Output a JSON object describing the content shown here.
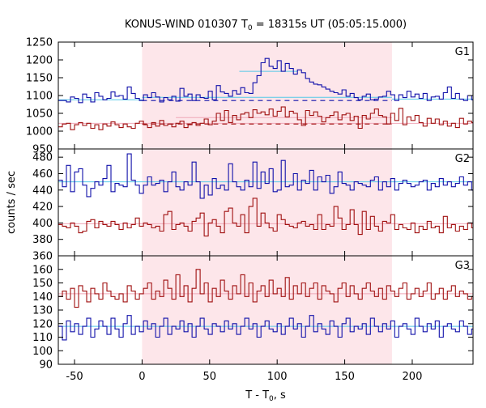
{
  "chart_data": {
    "type": "line",
    "title_main": "KONUS-WIND 010307 T",
    "title_sub": "0",
    "title_rest": " = 18315s UT (05:05:15.000)",
    "xlabel_main": "T - T",
    "xlabel_sub": "0",
    "xlabel_rest": ", s",
    "ylabel": "counts / sec",
    "xlim": [
      -62,
      245
    ],
    "xticks": [
      -50,
      0,
      50,
      100,
      150,
      200
    ],
    "xtick_labels": [
      "-50",
      "0",
      "50",
      "100",
      "150",
      "200"
    ],
    "shaded_interval": [
      0,
      185
    ],
    "colors": {
      "blue": "#1010aa",
      "red": "#a01010",
      "cyan": "#55c8e8",
      "pink": "#f0a8b8",
      "shade": "#fde6ea",
      "dash": "#1010aa",
      "dash_red": "#a01010"
    },
    "panels": [
      {
        "label": "G1",
        "ylim": [
          950,
          1250
        ],
        "yticks": [
          950,
          1000,
          1050,
          1100,
          1150,
          1200,
          1250
        ],
        "ytick_labels": [
          "950",
          "1000",
          "1050",
          "1100",
          "1150",
          "1200",
          "1250"
        ],
        "series": [
          {
            "color_key": "blue",
            "bin_width": 3,
            "x_start": -62,
            "values": [
              1086,
              1086,
              1082,
              1096,
              1092,
              1080,
              1104,
              1094,
              1082,
              1108,
              1098,
              1088,
              1092,
              1110,
              1098,
              1100,
              1090,
              1124,
              1106,
              1092,
              1086,
              1102,
              1094,
              1108,
              1096,
              1082,
              1094,
              1088,
              1098,
              1084,
              1120,
              1098,
              1104,
              1086,
              1102,
              1094,
              1092,
              1112,
              1088,
              1128,
              1110,
              1106,
              1098,
              1114,
              1104,
              1122,
              1108,
              1106,
              1136,
              1156,
              1192,
              1204,
              1182,
              1176,
              1198,
              1168,
              1190,
              1176,
              1160,
              1172,
              1164,
              1148,
              1138,
              1132,
              1130,
              1124,
              1118,
              1112,
              1108,
              1104,
              1116,
              1098,
              1106,
              1094,
              1088,
              1098,
              1104,
              1088,
              1090,
              1096,
              1098,
              1112,
              1102,
              1086,
              1102,
              1094,
              1112,
              1096,
              1104,
              1092,
              1106,
              1086,
              1096,
              1098,
              1090,
              1108,
              1124,
              1092,
              1106,
              1090,
              1086,
              1100,
              1088
            ]
          },
          {
            "color_key": "red",
            "bin_width": 3,
            "x_start": -62,
            "values": [
              1012,
              1020,
              1022,
              1004,
              1018,
              1024,
              1016,
              1022,
              1008,
              1018,
              1004,
              1020,
              1014,
              1026,
              1018,
              1010,
              1020,
              1012,
              1008,
              1022,
              1028,
              1018,
              1010,
              1024,
              1014,
              1030,
              1016,
              1020,
              1012,
              1022,
              1028,
              1010,
              1018,
              1024,
              1016,
              1022,
              1034,
              1018,
              1028,
              1050,
              1030,
              1058,
              1024,
              1044,
              1032,
              1048,
              1052,
              1038,
              1060,
              1050,
              1054,
              1046,
              1062,
              1042,
              1056,
              1068,
              1040,
              1056,
              1050,
              1032,
              1016,
              1058,
              1044,
              1054,
              1042,
              1026,
              1038,
              1044,
              1054,
              1032,
              1046,
              1050,
              1030,
              1042,
              1008,
              1044,
              1034,
              1050,
              1062,
              1044,
              1040,
              1020,
              1050,
              1030,
              1064,
              1018,
              1040,
              1030,
              1044,
              1024,
              1014,
              1036,
              1022,
              1034,
              1018,
              1028,
              1014,
              1022,
              1010,
              1036,
              1020,
              1028,
              1024
            ]
          }
        ],
        "backgrounds": [
          {
            "color_key": "cyan",
            "x": [
              -62,
              0
            ],
            "y": [
              1088,
              1088
            ]
          },
          {
            "color_key": "cyan",
            "x": [
              185,
              245
            ],
            "y": [
              1090,
              1090
            ]
          },
          {
            "color_key": "cyan",
            "x": [
              0,
              185
            ],
            "y": [
              1095,
              1095
            ]
          },
          {
            "color_key": "cyan",
            "x": [
              72,
              115
            ],
            "y": [
              1168,
              1168
            ]
          },
          {
            "color_key": "pink",
            "x": [
              -62,
              245
            ],
            "y": [
              1022,
              1022
            ]
          },
          {
            "color_key": "pink",
            "x": [
              25,
              185
            ],
            "y": [
              1038,
              1038
            ]
          }
        ],
        "dashed": [
          {
            "color_key": "dash",
            "x": [
              0,
              185
            ],
            "y": [
              1086,
              1086
            ]
          },
          {
            "color_key": "dash_red",
            "x": [
              0,
              185
            ],
            "y": [
              1020,
              1020
            ]
          }
        ]
      },
      {
        "label": "G2",
        "ylim": [
          360,
          490
        ],
        "yticks": [
          360,
          380,
          400,
          420,
          440,
          460,
          480
        ],
        "ytick_labels": [
          "360",
          "380",
          "400",
          "420",
          "440",
          "460",
          "480"
        ],
        "series": [
          {
            "color_key": "blue",
            "bin_width": 3,
            "x_start": -62,
            "values": [
              452,
              444,
              470,
              438,
              462,
              466,
              446,
              432,
              442,
              450,
              446,
              454,
              470,
              438,
              448,
              446,
              444,
              484,
              452,
              446,
              436,
              446,
              456,
              446,
              448,
              452,
              438,
              450,
              462,
              444,
              440,
              450,
              446,
              474,
              450,
              430,
              446,
              434,
              454,
              442,
              446,
              440,
              472,
              450,
              444,
              440,
              452,
              444,
              474,
              442,
              462,
              448,
              466,
              438,
              440,
              476,
              444,
              446,
              460,
              440,
              452,
              448,
              464,
              440,
              456,
              450,
              458,
              436,
              444,
              462,
              448,
              446,
              440,
              450,
              448,
              446,
              444,
              452,
              456,
              440,
              450,
              444,
              454,
              440,
              448,
              452,
              448,
              444,
              446,
              450,
              452,
              440,
              448,
              444,
              454,
              446,
              450,
              444,
              448,
              456,
              446,
              450,
              440
            ]
          },
          {
            "color_key": "red",
            "bin_width": 3,
            "x_start": -62,
            "values": [
              398,
              396,
              394,
              400,
              396,
              388,
              390,
              402,
              404,
              394,
              402,
              398,
              396,
              402,
              398,
              392,
              400,
              394,
              398,
              406,
              396,
              400,
              398,
              394,
              396,
              390,
              410,
              414,
              392,
              398,
              400,
              396,
              390,
              402,
              406,
              412,
              384,
              400,
              404,
              396,
              388,
              414,
              418,
              400,
              396,
              410,
              388,
              420,
              430,
              396,
              412,
              400,
              394,
              390,
              410,
              404,
              398,
              396,
              394,
              400,
              402,
              396,
              398,
              392,
              410,
              392,
              398,
              396,
              420,
              406,
              392,
              398,
              416,
              398,
              386,
              414,
              392,
              408,
              396,
              390,
              402,
              400,
              410,
              392,
              398,
              394,
              392,
              400,
              388,
              396,
              392,
              402,
              394,
              396,
              388,
              408,
              394,
              398,
              390,
              396,
              392,
              400,
              394
            ]
          }
        ],
        "backgrounds": [
          {
            "color_key": "cyan",
            "x": [
              -62,
              245
            ],
            "y": [
              450,
              450
            ]
          },
          {
            "color_key": "pink",
            "x": [
              -62,
              245
            ],
            "y": [
              399,
              399
            ]
          }
        ],
        "dashed": []
      },
      {
        "label": "G3",
        "ylim": [
          90,
          170
        ],
        "yticks": [
          90,
          100,
          110,
          120,
          130,
          140,
          150,
          160
        ],
        "ytick_labels": [
          "90",
          "100",
          "110",
          "120",
          "130",
          "140",
          "150",
          "160"
        ],
        "series": [
          {
            "color_key": "red",
            "bin_width": 3,
            "x_start": -62,
            "values": [
              140,
              144,
              138,
              146,
              132,
              148,
              144,
              136,
              146,
              142,
              138,
              150,
              144,
              140,
              138,
              142,
              136,
              148,
              144,
              138,
              142,
              146,
              150,
              138,
              144,
              140,
              152,
              146,
              138,
              156,
              140,
              148,
              136,
              146,
              160,
              142,
              150,
              136,
              146,
              140,
              152,
              144,
              138,
              148,
              142,
              156,
              140,
              150,
              136,
              144,
              148,
              140,
              152,
              142,
              146,
              140,
              154,
              138,
              148,
              142,
              150,
              140,
              146,
              150,
              138,
              148,
              144,
              142,
              136,
              146,
              150,
              140,
              148,
              142,
              138,
              146,
              150,
              144,
              140,
              146,
              138,
              148,
              144,
              140,
              146,
              150,
              138,
              142,
              146,
              140,
              144,
              150,
              138,
              142,
              146,
              138,
              144,
              148,
              140,
              144,
              142,
              138,
              140
            ]
          },
          {
            "color_key": "blue",
            "bin_width": 3,
            "x_start": -62,
            "values": [
              118,
              108,
              122,
              114,
              120,
              112,
              118,
              124,
              110,
              116,
              122,
              118,
              112,
              124,
              116,
              110,
              120,
              126,
              112,
              118,
              114,
              122,
              116,
              120,
              110,
              118,
              124,
              112,
              118,
              116,
              122,
              114,
              120,
              110,
              118,
              124,
              116,
              112,
              120,
              118,
              114,
              122,
              116,
              120,
              112,
              118,
              124,
              116,
              120,
              110,
              118,
              122,
              116,
              114,
              120,
              112,
              118,
              124,
              116,
              120,
              110,
              118,
              126,
              114,
              120,
              116,
              112,
              122,
              118,
              110,
              120,
              124,
              114,
              118,
              116,
              120,
              112,
              124,
              118,
              114,
              120,
              116,
              122,
              110,
              118,
              120,
              116,
              112,
              124,
              118,
              114,
              120,
              116,
              122,
              110,
              118,
              120,
              116,
              114,
              122,
              118,
              112,
              116
            ]
          }
        ],
        "backgrounds": [
          {
            "color_key": "cyan",
            "x": [
              -62,
              245
            ],
            "y": [
              118,
              118
            ]
          },
          {
            "color_key": "pink",
            "x": [
              -62,
              245
            ],
            "y": [
              142,
              142
            ]
          }
        ],
        "dashed": []
      }
    ]
  }
}
